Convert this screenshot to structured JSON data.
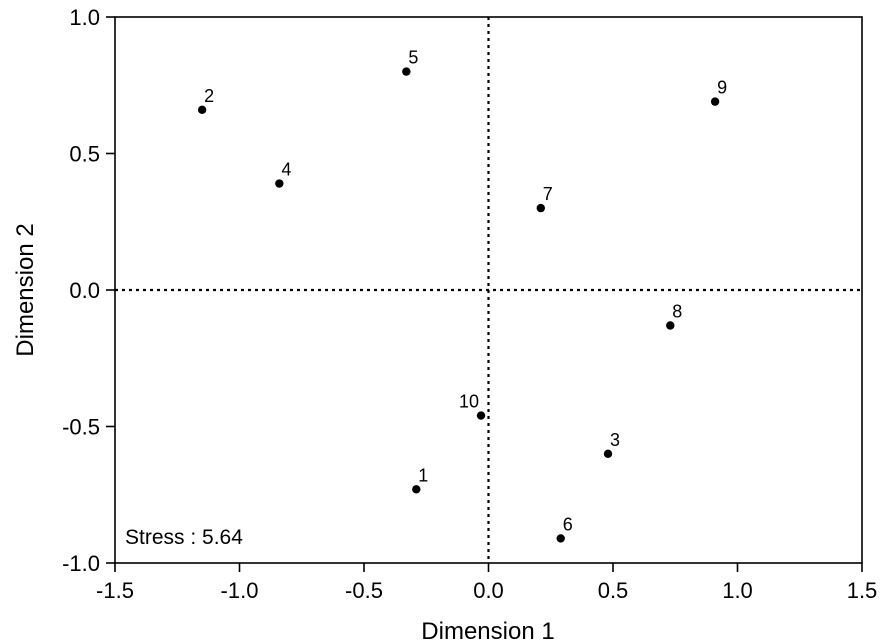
{
  "chart_data": {
    "type": "scatter",
    "title": "",
    "xlabel": "Dimension 1",
    "ylabel": "Dimension 2",
    "xlim": [
      -1.5,
      1.5
    ],
    "ylim": [
      -1.0,
      1.0
    ],
    "x_ticks": [
      "-1.5",
      "-1.0",
      "-0.5",
      "0.0",
      "0.5",
      "1.0",
      "1.5"
    ],
    "y_ticks": [
      "-1.0",
      "-0.5",
      "0.0",
      "0.5",
      "1.0"
    ],
    "grid": false,
    "reference_lines": {
      "x": 0.0,
      "y": 0.0,
      "style": "dotted"
    },
    "annotation": "Stress : 5.64",
    "points": [
      {
        "label": "1",
        "x": -0.29,
        "y": -0.73
      },
      {
        "label": "2",
        "x": -1.15,
        "y": 0.66
      },
      {
        "label": "3",
        "x": 0.48,
        "y": -0.6
      },
      {
        "label": "4",
        "x": -0.84,
        "y": 0.39
      },
      {
        "label": "5",
        "x": -0.33,
        "y": 0.8
      },
      {
        "label": "6",
        "x": 0.29,
        "y": -0.91
      },
      {
        "label": "7",
        "x": 0.21,
        "y": 0.3
      },
      {
        "label": "8",
        "x": 0.73,
        "y": -0.13
      },
      {
        "label": "9",
        "x": 0.91,
        "y": 0.69
      },
      {
        "label": "10",
        "x": -0.03,
        "y": -0.46
      }
    ],
    "colors": {
      "points": "#000000",
      "axes": "#000000"
    }
  }
}
